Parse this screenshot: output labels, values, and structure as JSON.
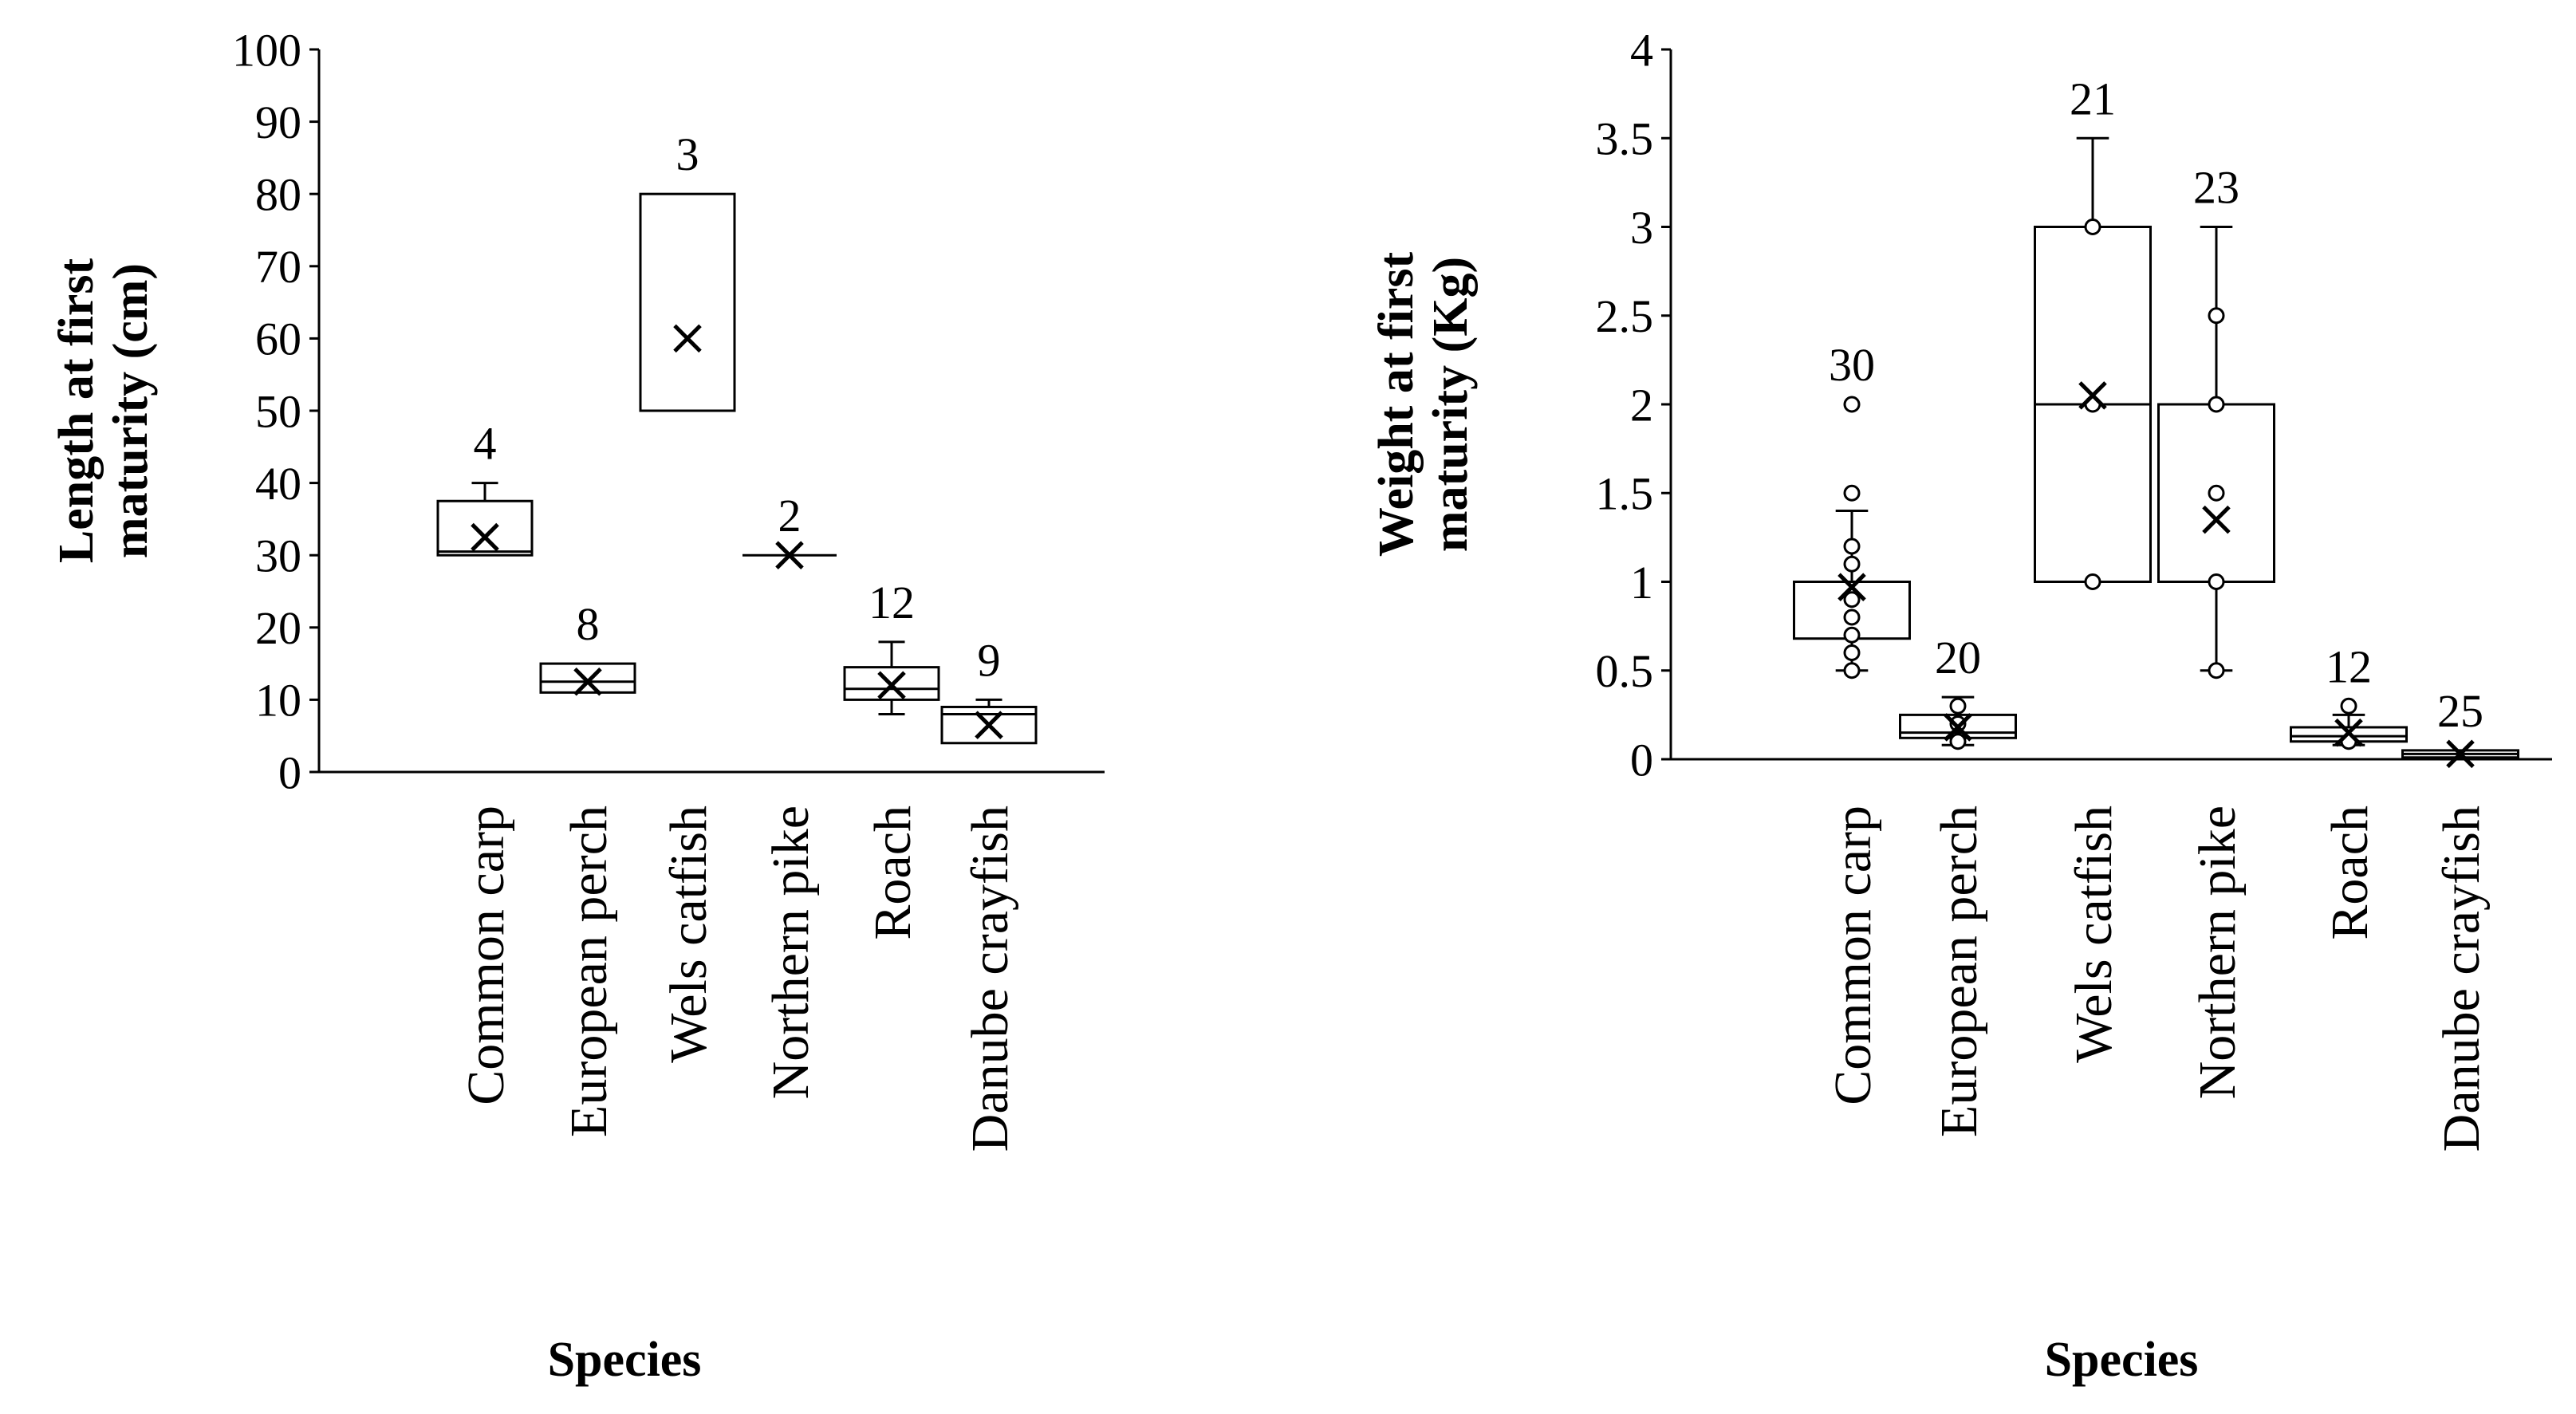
{
  "chart_data": [
    {
      "type": "box",
      "title": "",
      "xlabel": "Species",
      "ylabel": "Length at first maturity (cm)",
      "ylim": [
        0,
        100
      ],
      "yticks": [
        0,
        10,
        20,
        30,
        40,
        50,
        60,
        70,
        80,
        90,
        100
      ],
      "categories": [
        "Common carp",
        "European perch",
        "Wels catfish",
        "Northern pike",
        "Roach",
        "Danube crayfish"
      ],
      "boxes": [
        {
          "category": "Common carp",
          "n_label": "4",
          "whisker_low": 30,
          "q1": 30,
          "median": 30.5,
          "q3": 37.5,
          "whisker_high": 40,
          "mean": 32.5,
          "outliers": []
        },
        {
          "category": "European perch",
          "n_label": "8",
          "whisker_low": 11,
          "q1": 11,
          "median": 12.5,
          "q3": 15,
          "whisker_high": 15,
          "mean": 12.5,
          "outliers": []
        },
        {
          "category": "Wels catfish",
          "n_label": "3",
          "whisker_low": 50,
          "q1": 50,
          "median": 50,
          "q3": 80,
          "whisker_high": 80,
          "mean": 60,
          "outliers": []
        },
        {
          "category": "Northern pike",
          "n_label": "2",
          "whisker_low": 30,
          "q1": 30,
          "median": 30,
          "q3": 30,
          "whisker_high": 30,
          "mean": 30,
          "outliers": []
        },
        {
          "category": "Roach",
          "n_label": "12",
          "whisker_low": 8,
          "q1": 10,
          "median": 11.5,
          "q3": 14.5,
          "whisker_high": 18,
          "mean": 12,
          "outliers": []
        },
        {
          "category": "Danube crayfish",
          "n_label": "9",
          "whisker_low": 4,
          "q1": 4,
          "median": 8,
          "q3": 9,
          "whisker_high": 10,
          "mean": 6.5,
          "outliers": []
        }
      ]
    },
    {
      "type": "box",
      "title": "",
      "xlabel": "Species",
      "ylabel": "Weight at first maturity (Kg)",
      "ylim": [
        0,
        4
      ],
      "yticks": [
        0,
        0.5,
        1,
        1.5,
        2,
        2.5,
        3,
        3.5,
        4
      ],
      "categories": [
        "Common carp",
        "European perch",
        "Wels catfish",
        "Northern pike",
        "Roach",
        "Danube crayfish"
      ],
      "boxes": [
        {
          "category": "Common carp",
          "n_label": "30",
          "whisker_low": 0.5,
          "q1": 0.68,
          "median": 1,
          "q3": 1,
          "whisker_high": 1.4,
          "mean": 0.97,
          "points": [
            0.5,
            0.6,
            0.7,
            0.8,
            0.9,
            1.1,
            1.2,
            1.5,
            2
          ]
        },
        {
          "category": "European perch",
          "n_label": "20",
          "whisker_low": 0.08,
          "q1": 0.12,
          "median": 0.15,
          "q3": 0.25,
          "whisker_high": 0.35,
          "mean": 0.18,
          "points": [
            0.1,
            0.2,
            0.3
          ]
        },
        {
          "category": "Wels catfish",
          "n_label": "21",
          "whisker_low": 1,
          "q1": 1,
          "median": 2,
          "q3": 3,
          "whisker_high": 3.5,
          "mean": 2.05,
          "points": [
            1,
            2,
            3
          ]
        },
        {
          "category": "Northern pike",
          "n_label": "23",
          "whisker_low": 0.5,
          "q1": 1,
          "median": 2,
          "q3": 2,
          "whisker_high": 3,
          "mean": 1.35,
          "points": [
            0.5,
            1,
            1.5,
            2,
            2.5
          ]
        },
        {
          "category": "Roach",
          "n_label": "12",
          "whisker_low": 0.08,
          "q1": 0.1,
          "median": 0.13,
          "q3": 0.18,
          "whisker_high": 0.25,
          "mean": 0.15,
          "points": [
            0.1,
            0.3
          ]
        },
        {
          "category": "Danube crayfish",
          "n_label": "25",
          "whisker_low": 0.01,
          "q1": 0.01,
          "median": 0.03,
          "q3": 0.05,
          "whisker_high": 0.05,
          "mean": 0.03,
          "points": []
        }
      ]
    }
  ]
}
